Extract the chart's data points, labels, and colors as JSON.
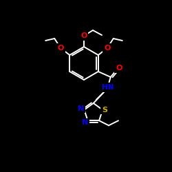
{
  "bg_color": "#000000",
  "bond_color": "#ffffff",
  "atom_colors": {
    "O": "#ff0000",
    "N": "#0000ff",
    "S": "#ccaa00",
    "C": "#ffffff"
  },
  "figsize": [
    2.5,
    2.5
  ],
  "dpi": 100,
  "lw": 1.4,
  "fs": 7.5
}
